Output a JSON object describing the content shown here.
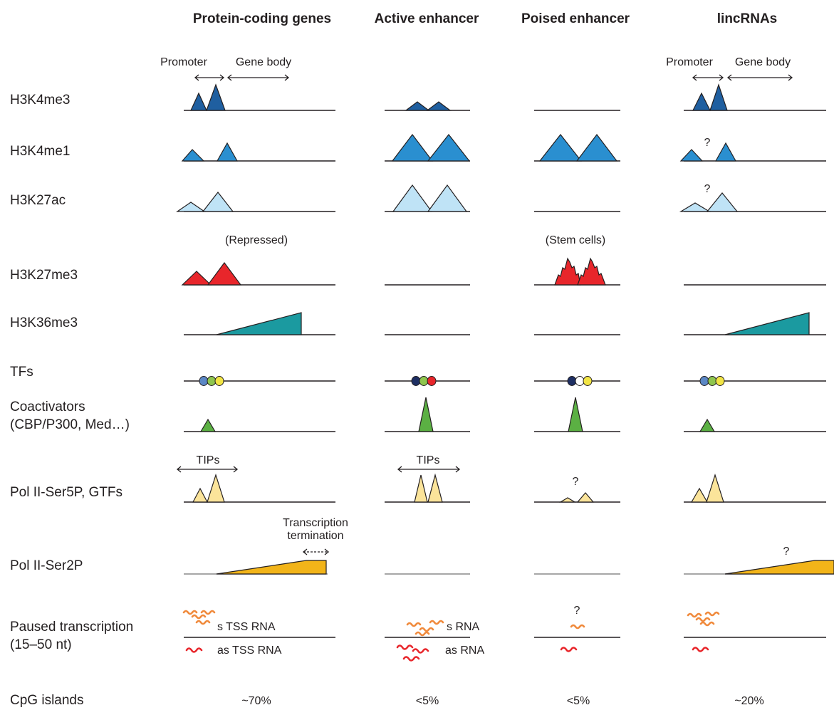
{
  "columns": {
    "protein_coding": "Protein-coding genes",
    "active_enhancer": "Active enhancer",
    "poised_enhancer": "Poised enhancer",
    "lincrnas": "lincRNAs"
  },
  "region_labels": {
    "promoter": "Promoter",
    "gene_body": "Gene body"
  },
  "rows": {
    "h3k4me3": "H3K4me3",
    "h3k4me1": "H3K4me1",
    "h3k27ac": "H3K27ac",
    "h3k27me3": "H3K27me3",
    "h3k36me3": "H3K36me3",
    "tfs": "TFs",
    "coactivators_line1": "Coactivators",
    "coactivators_line2": "(CBP/P300, Med…)",
    "pol2_ser5p": "Pol II-Ser5P, GTFs",
    "pol2_ser2p": "Pol II-Ser2P",
    "paused_line1": "Paused transcription",
    "paused_line2": "(15–50 nt)",
    "cpg": "CpG islands"
  },
  "annotations": {
    "repressed": "(Repressed)",
    "stem_cells": "(Stem cells)",
    "tips": "TIPs",
    "question": "?",
    "termination_line1": "Transcription",
    "termination_line2": "termination",
    "s_tss_rna": "s TSS RNA",
    "as_tss_rna": "as TSS RNA",
    "s_rna": "s RNA",
    "as_rna": "as RNA"
  },
  "cpg_values": {
    "protein_coding": "~70%",
    "active_enhancer": "<5%",
    "poised_enhancer": "<5%",
    "lincrnas": "~20%"
  },
  "colors": {
    "h3k4me3": "#1f5fa0",
    "h3k4me1": "#2a8fd0",
    "h3k27ac": "#bfe3f6",
    "h3k27me3": "#e8262b",
    "h3k36me3": "#1b9aa0",
    "coactivator": "#5bb043",
    "pol2_ser5p": "#fbe49a",
    "pol2_ser2p": "#f2b419",
    "tf_blue": "#5b87c5",
    "tf_green": "#8fc64e",
    "tf_yellow": "#f2e545",
    "tf_navy": "#1e2f63",
    "tf_red": "#e8262b",
    "rna_sense": "#f08a3c",
    "rna_antisense": "#e8262b"
  }
}
